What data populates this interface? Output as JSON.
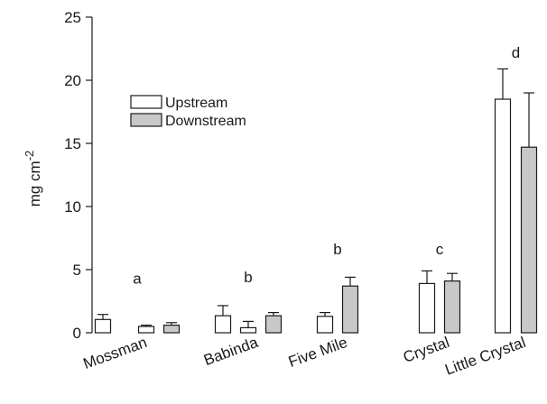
{
  "chart_data": {
    "type": "bar",
    "ylabel": "mg cm",
    "ylabel_superscript": "-2",
    "ylim": [
      0,
      25
    ],
    "yticks": [
      0,
      5,
      10,
      15,
      20,
      25
    ],
    "grid": false,
    "legend_position": "top-left",
    "categories": [
      "Mossman",
      "Babinda",
      "Five Mile",
      "Crystal",
      "Little Crystal"
    ],
    "series_style": {
      "Upstream": {
        "fill": "#ffffff",
        "stroke": "#1a1a1a"
      },
      "Downstream": {
        "fill": "#c8c8c8",
        "stroke": "#1a1a1a"
      }
    },
    "legend": [
      "Upstream",
      "Downstream"
    ],
    "groups": [
      {
        "category": "Mossman",
        "letter": "a",
        "letter_y": 3.9,
        "bars": [
          {
            "series": "Upstream",
            "value": 1.05,
            "err": 0.4
          },
          {
            "series": "Upstream",
            "value": 0.5,
            "err": 0.1
          },
          {
            "series": "Downstream",
            "value": 0.6,
            "err": 0.2
          }
        ]
      },
      {
        "category": "Babinda",
        "letter": "b",
        "letter_y": 4.0,
        "bars": [
          {
            "series": "Upstream",
            "value": 1.35,
            "err": 0.8
          },
          {
            "series": "Upstream",
            "value": 0.4,
            "err": 0.5
          },
          {
            "series": "Downstream",
            "value": 1.35,
            "err": 0.25
          }
        ]
      },
      {
        "category": "Five Mile",
        "letter": "b",
        "letter_y": 6.2,
        "bars": [
          {
            "series": "Upstream",
            "value": 1.3,
            "err": 0.3
          },
          {
            "series": "Downstream",
            "value": 3.7,
            "err": 0.7
          }
        ]
      },
      {
        "category": "Crystal",
        "letter": "c",
        "letter_y": 6.2,
        "bars": [
          {
            "series": "Upstream",
            "value": 3.9,
            "err": 1.0
          },
          {
            "series": "Downstream",
            "value": 4.1,
            "err": 0.6
          }
        ]
      },
      {
        "category": "Little Crystal",
        "letter": "d",
        "letter_y": 21.8,
        "bars": [
          {
            "series": "Upstream",
            "value": 18.5,
            "err": 2.4
          },
          {
            "series": "Downstream",
            "value": 14.7,
            "err": 4.3
          }
        ]
      }
    ]
  }
}
